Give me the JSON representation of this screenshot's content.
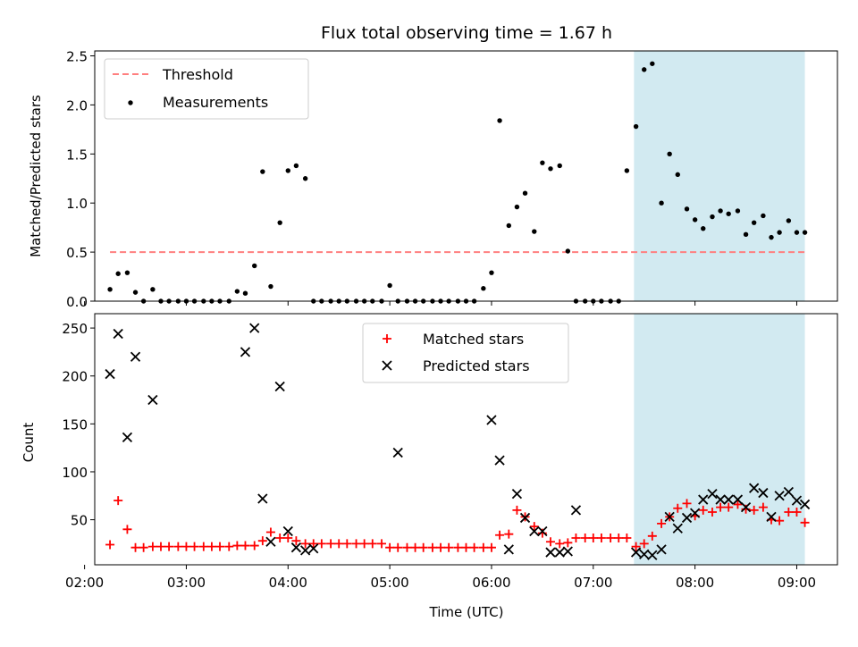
{
  "title": "Flux total observing time = 1.67 h",
  "colors": {
    "threshold": "#ff7f7f",
    "measurement": "#000000",
    "matched": "#ff0000",
    "predicted": "#000000",
    "shade": "#add8e6"
  },
  "chart_data": [
    {
      "type": "scatter",
      "title": "Flux total observing time = 1.67 h",
      "xlabel": "",
      "ylabel": "Matched/Predicted stars",
      "xlim": [
        2.1,
        9.4
      ],
      "ylim": [
        0,
        2.55
      ],
      "yticks": [
        0.0,
        0.5,
        1.0,
        1.5,
        2.0,
        2.5
      ],
      "ytick_labels": [
        "0.0",
        "0.5",
        "1.0",
        "1.5",
        "2.0",
        "2.5"
      ],
      "shaded_region": [
        7.4,
        9.08
      ],
      "threshold": {
        "name": "Threshold",
        "value": 0.5,
        "x": [
          2.25,
          9.08
        ],
        "style": "dashed"
      },
      "legend": [
        "Threshold",
        "Measurements"
      ],
      "legend_loc": "upper-left",
      "series": [
        {
          "name": "Measurements",
          "marker": "dot",
          "x": [
            2.25,
            2.33,
            2.42,
            2.5,
            2.58,
            2.67,
            2.75,
            2.83,
            2.92,
            3.0,
            3.08,
            3.17,
            3.25,
            3.33,
            3.42,
            3.5,
            3.58,
            3.67,
            3.75,
            3.83,
            3.92,
            4.0,
            4.08,
            4.17,
            4.25,
            4.33,
            4.42,
            4.5,
            4.58,
            4.67,
            4.75,
            4.83,
            4.92,
            5.0,
            5.08,
            5.17,
            5.25,
            5.33,
            5.42,
            5.5,
            5.58,
            5.67,
            5.75,
            5.83,
            5.92,
            6.0,
            6.08,
            6.17,
            6.25,
            6.33,
            6.42,
            6.5,
            6.58,
            6.67,
            6.75,
            6.83,
            6.92,
            7.0,
            7.08,
            7.17,
            7.25,
            7.33,
            7.42,
            7.5,
            7.58,
            7.67,
            7.75,
            7.83,
            7.92,
            8.0,
            8.08,
            8.17,
            8.25,
            8.33,
            8.42,
            8.5,
            8.58,
            8.67,
            8.75,
            8.83,
            8.92,
            9.0,
            9.08
          ],
          "y": [
            0.12,
            0.28,
            0.29,
            0.09,
            0.0,
            0.12,
            0.0,
            0.0,
            0.0,
            0.0,
            0.0,
            0.0,
            0.0,
            0.0,
            0.0,
            0.1,
            0.08,
            0.36,
            1.32,
            0.15,
            0.8,
            1.33,
            1.38,
            1.25,
            0.0,
            0.0,
            0.0,
            0.0,
            0.0,
            0.0,
            0.0,
            0.0,
            0.0,
            0.16,
            0.0,
            0.0,
            0.0,
            0.0,
            0.0,
            0.0,
            0.0,
            0.0,
            0.0,
            0.0,
            0.13,
            0.29,
            1.84,
            0.77,
            0.96,
            1.1,
            0.71,
            1.41,
            1.35,
            1.38,
            0.51,
            0.0,
            0.0,
            0.0,
            0.0,
            0.0,
            0.0,
            1.33,
            1.78,
            2.36,
            2.42,
            1.0,
            1.5,
            1.29,
            0.94,
            0.83,
            0.74,
            0.86,
            0.92,
            0.89,
            0.92,
            0.68,
            0.8,
            0.87,
            0.65,
            0.7,
            0.82,
            0.7,
            0.7
          ]
        }
      ]
    },
    {
      "type": "scatter",
      "title": "",
      "xlabel": "Time (UTC)",
      "ylabel": "Count",
      "xlim": [
        2.1,
        9.4
      ],
      "ylim": [
        3,
        265
      ],
      "xticks": [
        2.0,
        3.0,
        4.0,
        5.0,
        6.0,
        7.0,
        8.0,
        9.0
      ],
      "xtick_labels": [
        "02:00",
        "03:00",
        "04:00",
        "05:00",
        "06:00",
        "07:00",
        "08:00",
        "09:00"
      ],
      "yticks": [
        50,
        100,
        150,
        200,
        250
      ],
      "ytick_labels": [
        "50",
        "100",
        "150",
        "200",
        "250"
      ],
      "shaded_region": [
        7.4,
        9.08
      ],
      "legend": [
        "Matched stars",
        "Predicted stars"
      ],
      "legend_loc": "upper-center",
      "series": [
        {
          "name": "Matched stars",
          "marker": "plus",
          "x": [
            2.25,
            2.33,
            2.42,
            2.5,
            2.58,
            2.67,
            2.75,
            2.83,
            2.92,
            3.0,
            3.08,
            3.17,
            3.25,
            3.33,
            3.42,
            3.5,
            3.58,
            3.67,
            3.75,
            3.83,
            3.92,
            4.0,
            4.08,
            4.17,
            4.25,
            4.33,
            4.42,
            4.5,
            4.58,
            4.67,
            4.75,
            4.83,
            4.92,
            5.0,
            5.08,
            5.17,
            5.25,
            5.33,
            5.42,
            5.5,
            5.58,
            5.67,
            5.75,
            5.83,
            5.92,
            6.0,
            6.08,
            6.17,
            6.25,
            6.33,
            6.42,
            6.5,
            6.58,
            6.67,
            6.75,
            6.83,
            6.92,
            7.0,
            7.08,
            7.17,
            7.25,
            7.33,
            7.42,
            7.5,
            7.58,
            7.67,
            7.75,
            7.83,
            7.92,
            8.0,
            8.08,
            8.17,
            8.25,
            8.33,
            8.42,
            8.5,
            8.58,
            8.67,
            8.75,
            8.83,
            8.92,
            9.0,
            9.08
          ],
          "y": [
            24,
            70,
            40,
            21,
            21,
            22,
            22,
            22,
            22,
            22,
            22,
            22,
            22,
            22,
            22,
            23,
            23,
            23,
            28,
            37,
            31,
            31,
            28,
            25,
            25,
            25,
            25,
            25,
            25,
            25,
            25,
            25,
            25,
            21,
            21,
            21,
            21,
            21,
            21,
            21,
            21,
            21,
            21,
            21,
            21,
            21,
            34,
            35,
            60,
            53,
            43,
            36,
            27,
            25,
            26,
            31,
            31,
            31,
            31,
            31,
            31,
            31,
            22,
            25,
            33,
            46,
            53,
            62,
            67,
            54,
            60,
            58,
            63,
            63,
            66,
            61,
            60,
            63,
            50,
            49,
            58,
            58,
            47
          ]
        },
        {
          "name": "Predicted stars",
          "marker": "x",
          "x": [
            2.25,
            2.33,
            2.42,
            2.5,
            2.67,
            3.58,
            3.67,
            3.75,
            3.83,
            3.92,
            4.0,
            4.08,
            4.17,
            4.25,
            5.08,
            6.0,
            6.08,
            6.17,
            6.25,
            6.33,
            6.42,
            6.5,
            6.58,
            6.67,
            6.75,
            6.83,
            7.42,
            7.5,
            7.58,
            7.67,
            7.75,
            7.83,
            7.92,
            8.0,
            8.08,
            8.17,
            8.25,
            8.33,
            8.42,
            8.5,
            8.58,
            8.67,
            8.75,
            8.83,
            8.92,
            9.0,
            9.08
          ],
          "y": [
            202,
            244,
            136,
            220,
            175,
            225,
            250,
            72,
            27,
            189,
            38,
            21,
            18,
            20,
            120,
            154,
            112,
            19,
            77,
            52,
            38,
            38,
            16,
            16,
            17,
            60,
            16,
            14,
            13,
            19,
            53,
            41,
            52,
            57,
            71,
            77,
            71,
            71,
            71,
            63,
            83,
            78,
            53,
            75,
            79,
            70,
            66
          ]
        }
      ]
    }
  ]
}
